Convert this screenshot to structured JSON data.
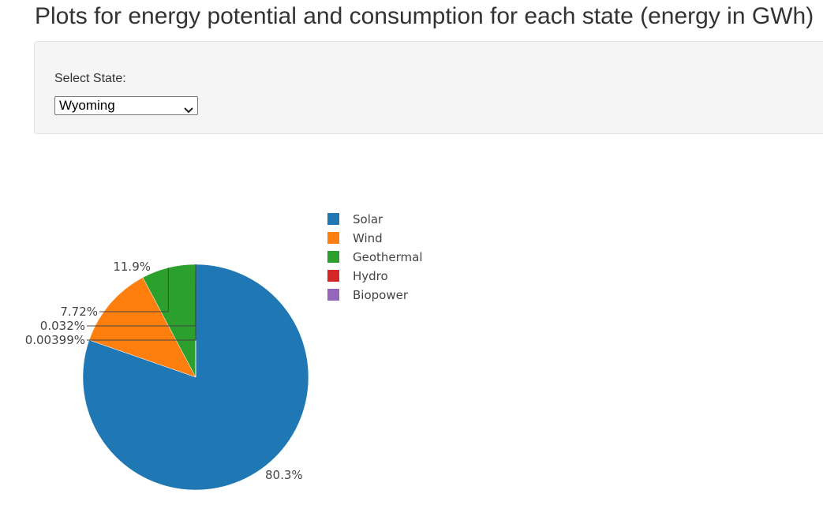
{
  "page": {
    "title": "Plots for energy potential and consumption for each state (energy in GWh)"
  },
  "sidebar": {
    "select_label": "Select State:",
    "selected_state": "Wyoming"
  },
  "chart_data": {
    "type": "pie",
    "title": "",
    "legend_position": "right",
    "slices": [
      {
        "name": "Solar",
        "percent": 80.3,
        "label": "80.3%",
        "color": "#1f77b4"
      },
      {
        "name": "Wind",
        "percent": 11.9,
        "label": "11.9%",
        "color": "#ff7f0e"
      },
      {
        "name": "Geothermal",
        "percent": 7.72,
        "label": "7.72%",
        "color": "#2ca02c"
      },
      {
        "name": "Hydro",
        "percent": 0.032,
        "label": "0.032%",
        "color": "#d62728"
      },
      {
        "name": "Biopower",
        "percent": 0.00399,
        "label": "0.00399%",
        "color": "#9467bd"
      }
    ]
  }
}
